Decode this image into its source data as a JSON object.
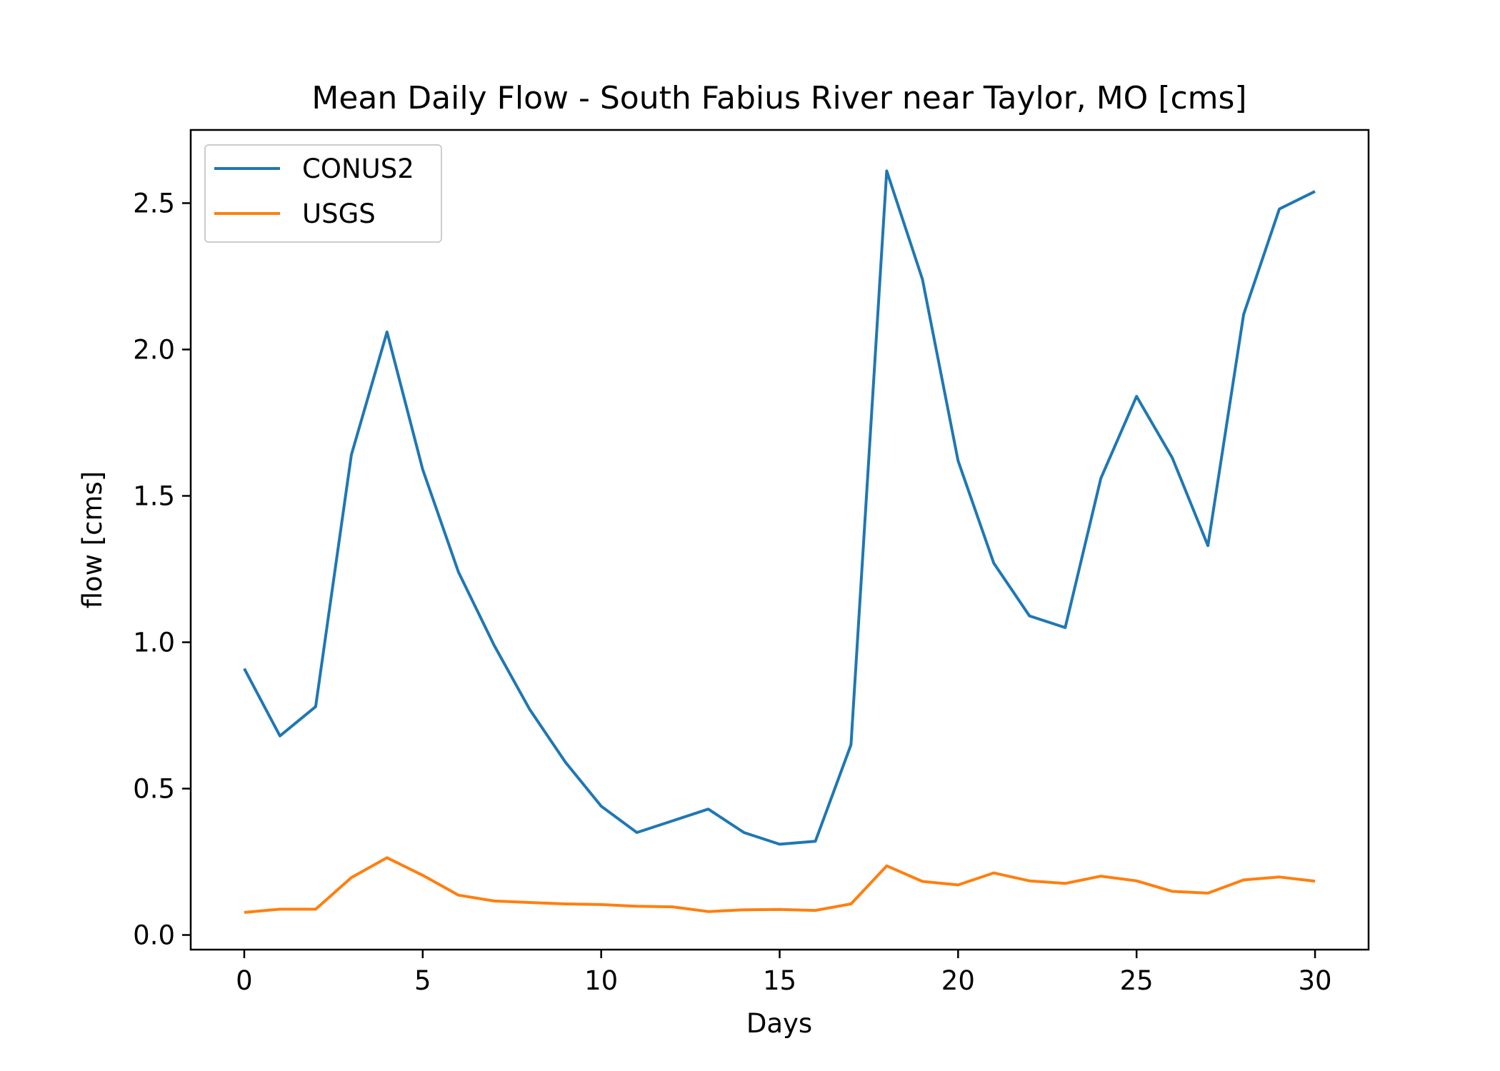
{
  "chart_data": {
    "type": "line",
    "title": "Mean Daily Flow - South Fabius River near Taylor, MO [cms]",
    "xlabel": "Days",
    "ylabel": "flow [cms]",
    "xlim": [
      -1.5,
      31.5
    ],
    "ylim": [
      -0.05,
      2.75
    ],
    "xticks": [
      0,
      5,
      10,
      15,
      20,
      25,
      30
    ],
    "xtick_labels": [
      "0",
      "5",
      "10",
      "15",
      "20",
      "25",
      "30"
    ],
    "yticks": [
      0.0,
      0.5,
      1.0,
      1.5,
      2.0,
      2.5
    ],
    "ytick_labels": [
      "0.0",
      "0.5",
      "1.0",
      "1.5",
      "2.0",
      "2.5"
    ],
    "grid": false,
    "legend_position": "top-left",
    "x": [
      0,
      1,
      2,
      3,
      4,
      5,
      6,
      7,
      8,
      9,
      10,
      11,
      12,
      13,
      14,
      15,
      16,
      17,
      18,
      19,
      20,
      21,
      22,
      23,
      24,
      25,
      26,
      27,
      28,
      29,
      30
    ],
    "series": [
      {
        "name": "CONUS2",
        "color": "#1f77b4",
        "values": [
          0.91,
          0.68,
          0.78,
          1.64,
          2.06,
          1.59,
          1.24,
          0.99,
          0.77,
          0.59,
          0.44,
          0.35,
          0.39,
          0.43,
          0.35,
          0.31,
          0.32,
          0.65,
          2.61,
          2.24,
          1.62,
          1.27,
          1.09,
          1.05,
          1.56,
          1.84,
          1.63,
          1.33,
          2.12,
          2.48,
          2.54
        ]
      },
      {
        "name": "USGS",
        "color": "#ff7f0e",
        "values": [
          0.077,
          0.088,
          0.088,
          0.196,
          0.264,
          0.204,
          0.136,
          0.116,
          0.111,
          0.106,
          0.104,
          0.098,
          0.096,
          0.08,
          0.086,
          0.087,
          0.084,
          0.106,
          0.236,
          0.183,
          0.171,
          0.212,
          0.185,
          0.176,
          0.201,
          0.185,
          0.149,
          0.143,
          0.188,
          0.198,
          0.184
        ]
      }
    ]
  }
}
